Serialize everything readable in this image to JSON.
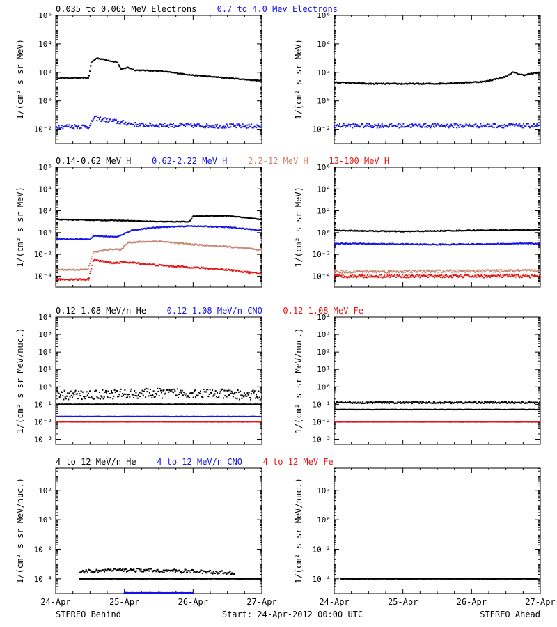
{
  "colors": {
    "black": "#000000",
    "blue": "#1414e6",
    "tan": "#c8866e",
    "red": "#e61414"
  },
  "footer": {
    "left": "STEREO Behind",
    "center": "Start: 24-Apr-2012 00:00 UTC",
    "right": "STEREO Ahead"
  },
  "x_ticks": [
    "24-Apr",
    "25-Apr",
    "26-Apr",
    "27-Apr"
  ],
  "chart_data": [
    {
      "id": "electrons",
      "type": "scatter",
      "log_y": true,
      "ylim": [
        -3,
        6
      ],
      "xlim": [
        "2012-04-24T00:00",
        "2012-04-27T00:00"
      ],
      "ylabel": "1/(cm² s sr MeV)",
      "yticks": [
        {
          "exp": -2,
          "label": "10⁻²"
        },
        {
          "exp": 0,
          "label": "10⁰"
        },
        {
          "exp": 2,
          "label": "10²"
        },
        {
          "exp": 4,
          "label": "10⁴"
        },
        {
          "exp": 6,
          "label": "10⁶"
        }
      ],
      "legend": [
        {
          "name": "0.035 to 0.065 MeV Electrons",
          "color": "black"
        },
        {
          "name": "0.7 to 4.0 Mev Electrons",
          "color": "blue"
        }
      ],
      "behind": [
        {
          "color": "black",
          "spread": 0.03,
          "knots": [
            [
              0,
              1.6
            ],
            [
              0.48,
              1.6
            ],
            [
              0.52,
              2.7
            ],
            [
              0.6,
              3.0
            ],
            [
              0.9,
              2.7
            ],
            [
              0.95,
              2.2
            ],
            [
              1.05,
              2.35
            ],
            [
              1.15,
              2.15
            ],
            [
              1.5,
              2.1
            ],
            [
              2,
              1.8
            ],
            [
              2.5,
              1.6
            ],
            [
              3,
              1.4
            ]
          ]
        },
        {
          "color": "blue",
          "spread": 0.15,
          "knots": [
            [
              0,
              -1.8
            ],
            [
              0.5,
              -1.8
            ],
            [
              0.55,
              -1.2
            ],
            [
              0.8,
              -1.4
            ],
            [
              1.2,
              -1.7
            ],
            [
              3,
              -1.8
            ]
          ]
        }
      ],
      "ahead": [
        {
          "color": "black",
          "spread": 0.04,
          "knots": [
            [
              0,
              1.3
            ],
            [
              0.5,
              1.2
            ],
            [
              1.5,
              1.2
            ],
            [
              2.2,
              1.35
            ],
            [
              2.5,
              1.7
            ],
            [
              2.6,
              2.0
            ],
            [
              2.75,
              1.8
            ],
            [
              3,
              2.0
            ]
          ]
        },
        {
          "color": "blue",
          "spread": 0.15,
          "knots": [
            [
              0,
              -1.75
            ],
            [
              3,
              -1.75
            ]
          ]
        }
      ]
    },
    {
      "id": "protons",
      "type": "scatter",
      "log_y": true,
      "ylim": [
        -5,
        6
      ],
      "xlim": [
        "2012-04-24T00:00",
        "2012-04-27T00:00"
      ],
      "ylabel": "1/(cm² s sr MeV)",
      "yticks": [
        {
          "exp": -4,
          "label": "10⁻⁴"
        },
        {
          "exp": -2,
          "label": "10⁻²"
        },
        {
          "exp": 0,
          "label": "10⁰"
        },
        {
          "exp": 2,
          "label": "10²"
        },
        {
          "exp": 4,
          "label": "10⁴"
        },
        {
          "exp": 6,
          "label": "10⁶"
        }
      ],
      "legend": [
        {
          "name": "0.14-0.62 MeV H",
          "color": "black"
        },
        {
          "name": "0.62-2.22 MeV H",
          "color": "blue"
        },
        {
          "name": "2.2-12 MeV H",
          "color": "tan"
        },
        {
          "name": "13-100 MeV H",
          "color": "red"
        }
      ],
      "behind": [
        {
          "color": "black",
          "spread": 0.03,
          "knots": [
            [
              0,
              1.2
            ],
            [
              1.0,
              1.1
            ],
            [
              1.5,
              1.0
            ],
            [
              1.95,
              1.0
            ],
            [
              2.0,
              1.5
            ],
            [
              2.5,
              1.55
            ],
            [
              3,
              1.2
            ]
          ]
        },
        {
          "color": "blue",
          "spread": 0.04,
          "knots": [
            [
              0,
              -0.6
            ],
            [
              0.5,
              -0.6
            ],
            [
              0.55,
              -0.3
            ],
            [
              0.9,
              -0.4
            ],
            [
              1.1,
              0.2
            ],
            [
              1.5,
              0.5
            ],
            [
              2.0,
              0.6
            ],
            [
              2.5,
              0.5
            ],
            [
              3,
              0.2
            ]
          ]
        },
        {
          "color": "tan",
          "spread": 0.06,
          "knots": [
            [
              0,
              -3.4
            ],
            [
              0.47,
              -3.4
            ],
            [
              0.55,
              -1.8
            ],
            [
              0.85,
              -1.5
            ],
            [
              0.95,
              -1.6
            ],
            [
              1.05,
              -0.9
            ],
            [
              1.5,
              -0.8
            ],
            [
              2.0,
              -1.1
            ],
            [
              2.5,
              -1.3
            ],
            [
              3,
              -1.6
            ]
          ]
        },
        {
          "color": "red",
          "spread": 0.07,
          "knots": [
            [
              0,
              -4.3
            ],
            [
              0.48,
              -4.3
            ],
            [
              0.55,
              -2.5
            ],
            [
              0.85,
              -2.8
            ],
            [
              1.0,
              -2.7
            ],
            [
              1.5,
              -3.0
            ],
            [
              2.0,
              -3.2
            ],
            [
              2.5,
              -3.4
            ],
            [
              3,
              -3.8
            ]
          ]
        }
      ],
      "ahead": [
        {
          "color": "black",
          "spread": 0.04,
          "knots": [
            [
              0,
              0.2
            ],
            [
              1.0,
              0.1
            ],
            [
              2.0,
              0.2
            ],
            [
              3,
              0.25
            ]
          ]
        },
        {
          "color": "blue",
          "spread": 0.05,
          "knots": [
            [
              0,
              -1.0
            ],
            [
              1.5,
              -1.1
            ],
            [
              3,
              -1.0
            ]
          ]
        },
        {
          "color": "tan",
          "spread": 0.12,
          "knots": [
            [
              0,
              -3.6
            ],
            [
              3,
              -3.5
            ]
          ]
        },
        {
          "color": "red",
          "spread": 0.14,
          "knots": [
            [
              0,
              -4.0
            ],
            [
              3,
              -4.0
            ]
          ]
        }
      ]
    },
    {
      "id": "heavy-low",
      "type": "scatter",
      "log_y": true,
      "ylim": [
        -3.3,
        4
      ],
      "xlim": [
        "2012-04-24T00:00",
        "2012-04-27T00:00"
      ],
      "ylabel": "1/(cm² s sr MeV/nuc.)",
      "yticks": [
        {
          "exp": -3,
          "label": "10⁻³"
        },
        {
          "exp": -2,
          "label": "10⁻²"
        },
        {
          "exp": -1,
          "label": "10⁻¹"
        },
        {
          "exp": 0,
          "label": "10⁰"
        },
        {
          "exp": 1,
          "label": "10¹"
        },
        {
          "exp": 2,
          "label": "10²"
        },
        {
          "exp": 3,
          "label": "10³"
        },
        {
          "exp": 4,
          "label": "10⁴"
        }
      ],
      "legend": [
        {
          "name": "0.12-1.08 MeV/n He",
          "color": "black"
        },
        {
          "name": "0.12-1.08 MeV/n CNO",
          "color": "blue"
        },
        {
          "name": "0.12-1.08 MeV Fe",
          "color": "red"
        }
      ],
      "behind": [
        {
          "color": "black",
          "spread": 0.28,
          "knots": [
            [
              0,
              -0.5
            ],
            [
              1,
              -0.4
            ],
            [
              2,
              -0.35
            ],
            [
              3,
              -0.5
            ]
          ]
        },
        {
          "color": "black",
          "spread": 0.01,
          "knots": [
            [
              0,
              -1.0
            ],
            [
              3,
              -1.0
            ]
          ]
        },
        {
          "color": "blue",
          "spread": 0.01,
          "knots": [
            [
              0,
              -1.7
            ],
            [
              3,
              -1.7
            ]
          ]
        },
        {
          "color": "red",
          "spread": 0.01,
          "knots": [
            [
              0,
              -2.0
            ],
            [
              3,
              -2.0
            ]
          ]
        }
      ],
      "ahead": [
        {
          "color": "black",
          "spread": 0.05,
          "knots": [
            [
              0,
              -0.9
            ],
            [
              3,
              -0.9
            ]
          ]
        },
        {
          "color": "black",
          "spread": 0.01,
          "knots": [
            [
              0,
              -1.3
            ],
            [
              3,
              -1.3
            ]
          ]
        },
        {
          "color": "blue",
          "spread": 0.01,
          "knots": [
            [
              0,
              -2.0
            ],
            [
              3,
              -2.0
            ]
          ]
        },
        {
          "color": "red",
          "spread": 0.01,
          "knots": [
            [
              0,
              -2.0
            ],
            [
              3,
              -2.0
            ]
          ]
        }
      ]
    },
    {
      "id": "heavy-high",
      "type": "scatter",
      "log_y": true,
      "ylim": [
        -5,
        3.5
      ],
      "xlim": [
        "2012-04-24T00:00",
        "2012-04-27T00:00"
      ],
      "ylabel": "1/(cm² s sr MeV/nuc.)",
      "yticks": [
        {
          "exp": -4,
          "label": "10⁻⁴"
        },
        {
          "exp": -2,
          "label": "10⁻²"
        },
        {
          "exp": 0,
          "label": "10⁰"
        },
        {
          "exp": 2,
          "label": "10²"
        }
      ],
      "legend": [
        {
          "name": "4 to 12 MeV/n He",
          "color": "black"
        },
        {
          "name": "4 to 12 MeV/n CNO",
          "color": "blue"
        },
        {
          "name": "4 to 12 MeV Fe",
          "color": "red"
        }
      ],
      "behind": [
        {
          "color": "black",
          "spread": 0.12,
          "knots": [
            [
              0.35,
              -3.5
            ],
            [
              1.0,
              -3.4
            ],
            [
              2.0,
              -3.5
            ],
            [
              2.6,
              -3.6
            ]
          ]
        },
        {
          "color": "black",
          "spread": 0.01,
          "knots": [
            [
              0.35,
              -4.0
            ],
            [
              3,
              -4.0
            ]
          ]
        },
        {
          "color": "blue",
          "spread": 0.01,
          "knots": [
            [
              1,
              -4.95
            ],
            [
              2,
              -4.95
            ]
          ]
        }
      ],
      "ahead": [
        {
          "color": "black",
          "spread": 0.01,
          "knots": [
            [
              0.1,
              -4.0
            ],
            [
              2.95,
              -4.0
            ]
          ]
        }
      ]
    }
  ]
}
